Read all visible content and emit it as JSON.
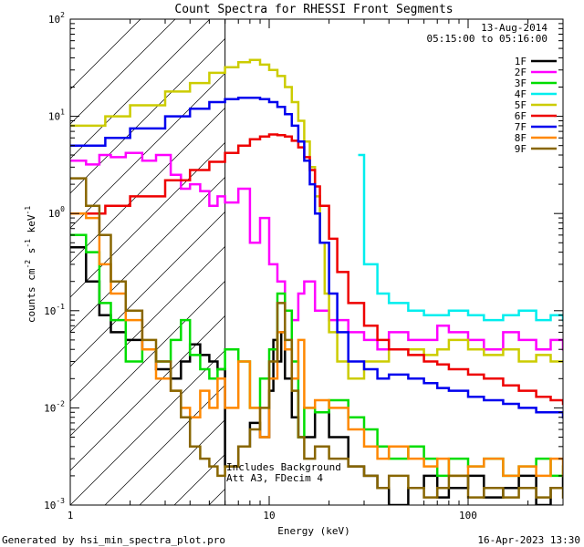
{
  "chart_data": {
    "type": "line",
    "title": "Count Spectra for RHESSI Front Segments",
    "xlabel": "Energy (keV)",
    "ylabel_parts": [
      "counts cm",
      "-2",
      " s",
      "-1",
      " keV",
      "-1"
    ],
    "x_scale": "log",
    "y_scale": "log",
    "xlim": [
      1,
      300
    ],
    "ylim": [
      0.001,
      100
    ],
    "x_ticks": [
      {
        "value": 1,
        "label": "1"
      },
      {
        "value": 10,
        "label": "10"
      },
      {
        "value": 100,
        "label": "100"
      }
    ],
    "y_ticks": [
      {
        "value": 100,
        "base": "10",
        "exp": "2"
      },
      {
        "value": 10,
        "base": "10",
        "exp": "1"
      },
      {
        "value": 1,
        "base": "10",
        "exp": "0"
      },
      {
        "value": 0.1,
        "base": "10",
        "exp": "-1"
      },
      {
        "value": 0.01,
        "base": "10",
        "exp": "-2"
      },
      {
        "value": 0.001,
        "base": "10",
        "exp": "-3"
      }
    ],
    "attenuator_region": {
      "x_max": 6
    },
    "date": "13-Aug-2014",
    "time_range": "05:15:00 to 05:16:00",
    "annotations": [
      "Includes Background",
      "Att A3, FDecim  4"
    ],
    "footer_left": "Generated by hsi_min_spectra_plot.pro",
    "footer_right": "16-Apr-2023 13:30",
    "series": [
      {
        "name": "1F",
        "color": "#000000",
        "x": [
          1.0,
          1.2,
          1.4,
          1.6,
          1.9,
          2.3,
          2.7,
          3.2,
          3.6,
          4.0,
          4.5,
          5.0,
          5.5,
          6.0,
          7.0,
          8.0,
          9.0,
          10.0,
          10.5,
          11.0,
          11.5,
          12.0,
          13.0,
          14.0,
          15.0,
          17.0,
          20.0,
          25.0,
          30.0,
          35.0,
          40.0,
          50.0,
          60.0,
          70.0,
          80.0,
          100.0,
          120.0,
          150.0,
          180.0,
          220.0,
          260.0,
          300.0
        ],
        "y": [
          0.45,
          0.2,
          0.09,
          0.06,
          0.05,
          0.04,
          0.025,
          0.02,
          0.03,
          0.045,
          0.035,
          0.03,
          0.025,
          0.0025,
          0.004,
          0.007,
          0.005,
          0.015,
          0.05,
          0.03,
          0.06,
          0.02,
          0.008,
          0.005,
          0.005,
          0.009,
          0.005,
          0.0025,
          0.002,
          0.0015,
          0.001,
          0.0015,
          0.002,
          0.0012,
          0.0015,
          0.002,
          0.0012,
          0.0015,
          0.002,
          0.001,
          0.0015,
          0.002
        ]
      },
      {
        "name": "2F",
        "color": "#ff00ff",
        "x": [
          1.0,
          1.2,
          1.4,
          1.6,
          1.9,
          2.3,
          2.7,
          3.2,
          3.6,
          4.0,
          4.5,
          5.0,
          5.5,
          6.0,
          7.0,
          8.0,
          9.0,
          10.0,
          11.0,
          12.0,
          13.0,
          14.0,
          15.0,
          17.0,
          20.0,
          25.0,
          30.0,
          35.0,
          40.0,
          50.0,
          60.0,
          70.0,
          80.0,
          100.0,
          120.0,
          150.0,
          180.0,
          220.0,
          260.0,
          300.0
        ],
        "y": [
          3.5,
          3.2,
          4.0,
          3.8,
          4.2,
          3.5,
          4.0,
          2.5,
          1.8,
          2.0,
          1.7,
          1.2,
          1.5,
          1.3,
          1.8,
          0.5,
          0.9,
          0.3,
          0.2,
          0.1,
          0.08,
          0.15,
          0.2,
          0.1,
          0.08,
          0.06,
          0.05,
          0.04,
          0.06,
          0.05,
          0.05,
          0.07,
          0.06,
          0.05,
          0.04,
          0.06,
          0.05,
          0.04,
          0.05,
          0.04
        ]
      },
      {
        "name": "3F",
        "color": "#00dd00",
        "x": [
          1.0,
          1.2,
          1.4,
          1.6,
          1.9,
          2.3,
          2.7,
          3.2,
          3.6,
          4.0,
          4.5,
          5.0,
          5.5,
          6.0,
          7.0,
          8.0,
          9.0,
          10.0,
          11.0,
          12.0,
          13.0,
          14.0,
          15.0,
          17.0,
          20.0,
          25.0,
          30.0,
          35.0,
          40.0,
          50.0,
          60.0,
          70.0,
          80.0,
          100.0,
          120.0,
          150.0,
          180.0,
          220.0,
          260.0,
          300.0
        ],
        "y": [
          0.6,
          0.4,
          0.12,
          0.08,
          0.03,
          0.04,
          0.03,
          0.05,
          0.08,
          0.035,
          0.025,
          0.02,
          0.025,
          0.04,
          0.03,
          0.01,
          0.02,
          0.04,
          0.15,
          0.1,
          0.03,
          0.005,
          0.01,
          0.009,
          0.012,
          0.008,
          0.006,
          0.004,
          0.003,
          0.004,
          0.003,
          0.002,
          0.003,
          0.0025,
          0.003,
          0.002,
          0.0025,
          0.003,
          0.002,
          0.0025
        ]
      },
      {
        "name": "4F",
        "color": "#00eeee",
        "x": [
          28.0,
          30.0,
          35.0,
          40.0,
          50.0,
          60.0,
          70.0,
          80.0,
          100.0,
          120.0,
          150.0,
          180.0,
          220.0,
          260.0,
          300.0
        ],
        "y": [
          4.0,
          0.3,
          0.15,
          0.12,
          0.1,
          0.09,
          0.09,
          0.1,
          0.09,
          0.08,
          0.09,
          0.1,
          0.08,
          0.09,
          0.08
        ]
      },
      {
        "name": "5F",
        "color": "#cccc00",
        "x": [
          1.0,
          1.5,
          2.0,
          3.0,
          4.0,
          5.0,
          6.0,
          7.0,
          8.0,
          9.0,
          10.0,
          11.0,
          12.0,
          13.0,
          14.0,
          15.0,
          16.0,
          17.0,
          18.0,
          19.0,
          20.0,
          22.0,
          25.0,
          30.0,
          35.0,
          40.0,
          50.0,
          60.0,
          70.0,
          80.0,
          100.0,
          120.0,
          150.0,
          180.0,
          220.0,
          260.0,
          300.0
        ],
        "y": [
          8,
          10,
          13,
          18,
          22,
          28,
          32,
          36,
          38,
          34,
          30,
          26,
          20,
          14,
          9,
          5.5,
          3,
          1.5,
          0.5,
          0.15,
          0.06,
          0.03,
          0.02,
          0.03,
          0.03,
          0.04,
          0.04,
          0.035,
          0.04,
          0.05,
          0.04,
          0.035,
          0.04,
          0.03,
          0.035,
          0.03,
          0.03
        ]
      },
      {
        "name": "6F",
        "color": "#ee0000",
        "x": [
          1.0,
          1.5,
          2.0,
          3.0,
          4.0,
          5.0,
          6.0,
          7.0,
          8.0,
          9.0,
          10.0,
          11.0,
          12.0,
          13.0,
          14.0,
          15.0,
          16.0,
          17.0,
          18.0,
          20.0,
          22.0,
          25.0,
          30.0,
          35.0,
          40.0,
          50.0,
          60.0,
          70.0,
          80.0,
          100.0,
          120.0,
          150.0,
          180.0,
          220.0,
          260.0,
          300.0
        ],
        "y": [
          1.0,
          1.2,
          1.5,
          2.2,
          2.8,
          3.4,
          4.2,
          5.0,
          5.8,
          6.2,
          6.5,
          6.4,
          6.2,
          5.6,
          4.8,
          3.8,
          2.8,
          1.9,
          1.2,
          0.55,
          0.25,
          0.12,
          0.07,
          0.05,
          0.04,
          0.035,
          0.03,
          0.028,
          0.025,
          0.022,
          0.02,
          0.017,
          0.015,
          0.013,
          0.012,
          0.011
        ]
      },
      {
        "name": "7F",
        "color": "#0000ee",
        "x": [
          1.0,
          1.5,
          2.0,
          3.0,
          4.0,
          5.0,
          6.0,
          7.0,
          8.0,
          9.0,
          10.0,
          11.0,
          12.0,
          13.0,
          14.0,
          15.0,
          16.0,
          17.0,
          18.0,
          20.0,
          22.0,
          25.0,
          30.0,
          35.0,
          40.0,
          50.0,
          60.0,
          70.0,
          80.0,
          100.0,
          120.0,
          150.0,
          180.0,
          220.0,
          260.0,
          300.0
        ],
        "y": [
          5.0,
          6.0,
          7.5,
          10.0,
          12.0,
          14.0,
          15.0,
          15.5,
          15.5,
          15.0,
          14.0,
          12.5,
          10.5,
          8.0,
          5.5,
          3.5,
          2.0,
          1.0,
          0.5,
          0.15,
          0.06,
          0.03,
          0.025,
          0.02,
          0.022,
          0.02,
          0.018,
          0.016,
          0.015,
          0.013,
          0.012,
          0.011,
          0.01,
          0.009,
          0.009,
          0.008
        ]
      },
      {
        "name": "8F",
        "color": "#ff8800",
        "x": [
          1.0,
          1.2,
          1.4,
          1.6,
          1.9,
          2.3,
          2.7,
          3.2,
          3.6,
          4.0,
          4.5,
          5.0,
          5.5,
          6.0,
          7.0,
          8.0,
          9.0,
          10.0,
          11.0,
          12.0,
          13.0,
          14.0,
          15.0,
          17.0,
          20.0,
          25.0,
          30.0,
          35.0,
          40.0,
          50.0,
          60.0,
          70.0,
          80.0,
          100.0,
          120.0,
          150.0,
          180.0,
          220.0,
          260.0,
          300.0
        ],
        "y": [
          1.0,
          0.9,
          0.3,
          0.15,
          0.08,
          0.04,
          0.02,
          0.015,
          0.01,
          0.008,
          0.015,
          0.01,
          0.02,
          0.01,
          0.03,
          0.01,
          0.005,
          0.02,
          0.06,
          0.04,
          0.02,
          0.05,
          0.01,
          0.012,
          0.01,
          0.006,
          0.004,
          0.003,
          0.004,
          0.003,
          0.0025,
          0.003,
          0.002,
          0.0025,
          0.003,
          0.002,
          0.0025,
          0.002,
          0.003,
          0.002
        ]
      },
      {
        "name": "9F",
        "color": "#886600",
        "x": [
          1.0,
          1.2,
          1.4,
          1.6,
          1.9,
          2.3,
          2.7,
          3.2,
          3.6,
          4.0,
          4.5,
          5.0,
          5.5,
          6.0,
          7.0,
          8.0,
          9.0,
          10.0,
          11.0,
          12.0,
          13.0,
          14.0,
          15.0,
          17.0,
          20.0,
          25.0,
          30.0,
          35.0,
          40.0,
          50.0,
          60.0,
          70.0,
          80.0,
          100.0,
          120.0,
          150.0,
          180.0,
          220.0,
          260.0,
          300.0
        ],
        "y": [
          2.3,
          1.2,
          0.6,
          0.2,
          0.1,
          0.05,
          0.03,
          0.015,
          0.008,
          0.004,
          0.003,
          0.0025,
          0.002,
          0.0025,
          0.004,
          0.006,
          0.01,
          0.03,
          0.12,
          0.05,
          0.015,
          0.005,
          0.003,
          0.004,
          0.003,
          0.0025,
          0.002,
          0.0015,
          0.002,
          0.0015,
          0.0012,
          0.0015,
          0.002,
          0.0012,
          0.0015,
          0.0012,
          0.0015,
          0.0012,
          0.0015,
          0.0012
        ]
      }
    ]
  }
}
